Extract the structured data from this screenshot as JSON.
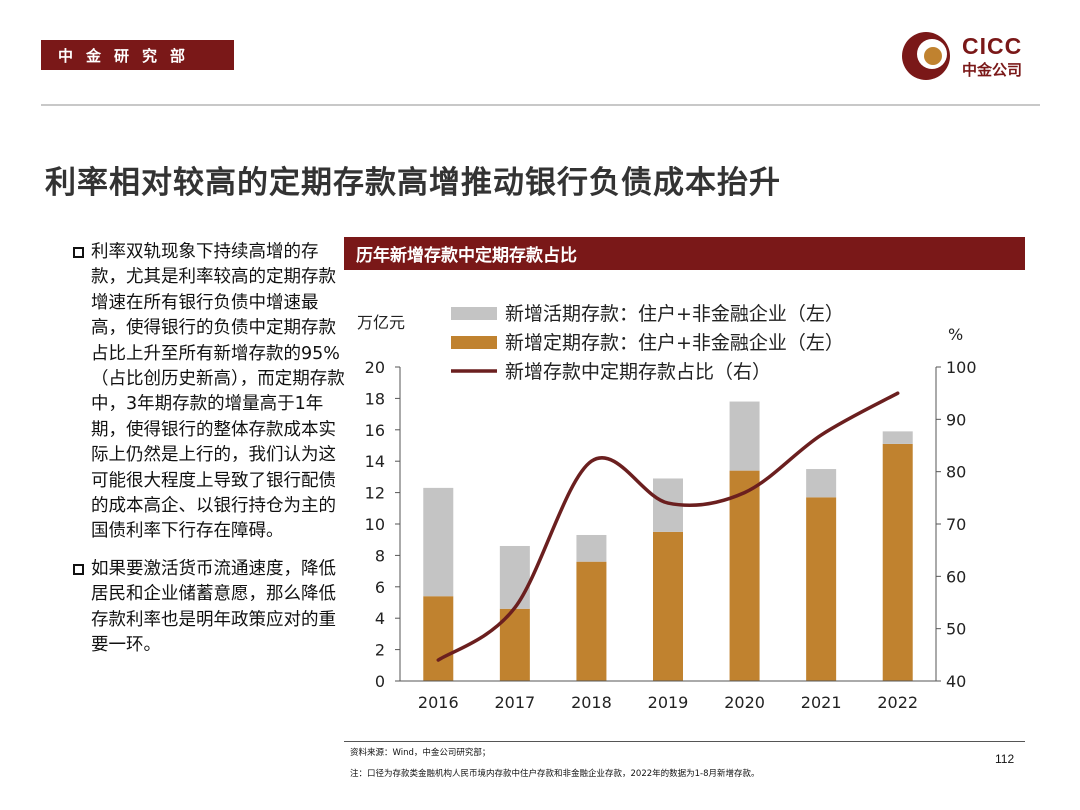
{
  "header": {
    "dept_tag": "中金研究部",
    "logo_en": "CICC",
    "logo_cn": "中金公司",
    "brand_color": "#7a1818"
  },
  "title": "利率相对较高的定期存款高增推动银行负债成本抬升",
  "bullets": [
    "利率双轨现象下持续高增的存款，尤其是利率较高的定期存款增速在所有银行负债中增速最高，使得银行的负债中定期存款占比上升至所有新增存款的95%（占比创历史新高），而定期存款中，3年期存款的增量高于1年期，使得银行的整体存款成本实际上仍然是上行的，我们认为这可能很大程度上导致了银行配债的成本高企、以银行持仓为主的国债利率下行存在障碍。",
    "如果要激活货币流通速度，降低居民和企业储蓄意愿，那么降低存款利率也是明年政策应对的重要一环。"
  ],
  "chart_title": "历年新增存款中定期存款占比",
  "chart_data": {
    "type": "bar",
    "stacked": true,
    "categories": [
      "2016",
      "2017",
      "2018",
      "2019",
      "2020",
      "2021",
      "2022"
    ],
    "series": [
      {
        "name": "新增定期存款：住户+非金融企业（左）",
        "type": "bar",
        "axis": "left",
        "color": "#c0822f",
        "values": [
          5.4,
          4.6,
          7.6,
          9.5,
          13.4,
          11.7,
          15.1
        ]
      },
      {
        "name": "新增活期存款：住户+非金融企业（左）",
        "type": "bar",
        "axis": "left",
        "color": "#c4c4c4",
        "values": [
          6.9,
          4.0,
          1.7,
          3.4,
          4.4,
          1.8,
          0.8
        ]
      },
      {
        "name": "新增存款中定期存款占比（右）",
        "type": "line",
        "axis": "right",
        "color": "#6b1f1f",
        "values": [
          44,
          54,
          82,
          74,
          76,
          87,
          95
        ]
      }
    ],
    "legend_order": [
      1,
      0,
      2
    ],
    "ylabel_left": "万亿元",
    "ylabel_right": "%",
    "ylim_left": [
      0,
      20
    ],
    "yticks_left": [
      0,
      2,
      4,
      6,
      8,
      10,
      12,
      14,
      16,
      18,
      20
    ],
    "ylim_right": [
      40,
      100
    ],
    "yticks_right": [
      40,
      50,
      60,
      70,
      80,
      90,
      100
    ],
    "grid": false,
    "legend_position": "top-center"
  },
  "footer": {
    "source": "资料来源：Wind，中金公司研究部；",
    "note": "注：口径为存款类金融机构人民币境内存款中住户存款和非金融企业存款，2022年的数据为1-8月新增存款。",
    "page": "112"
  }
}
